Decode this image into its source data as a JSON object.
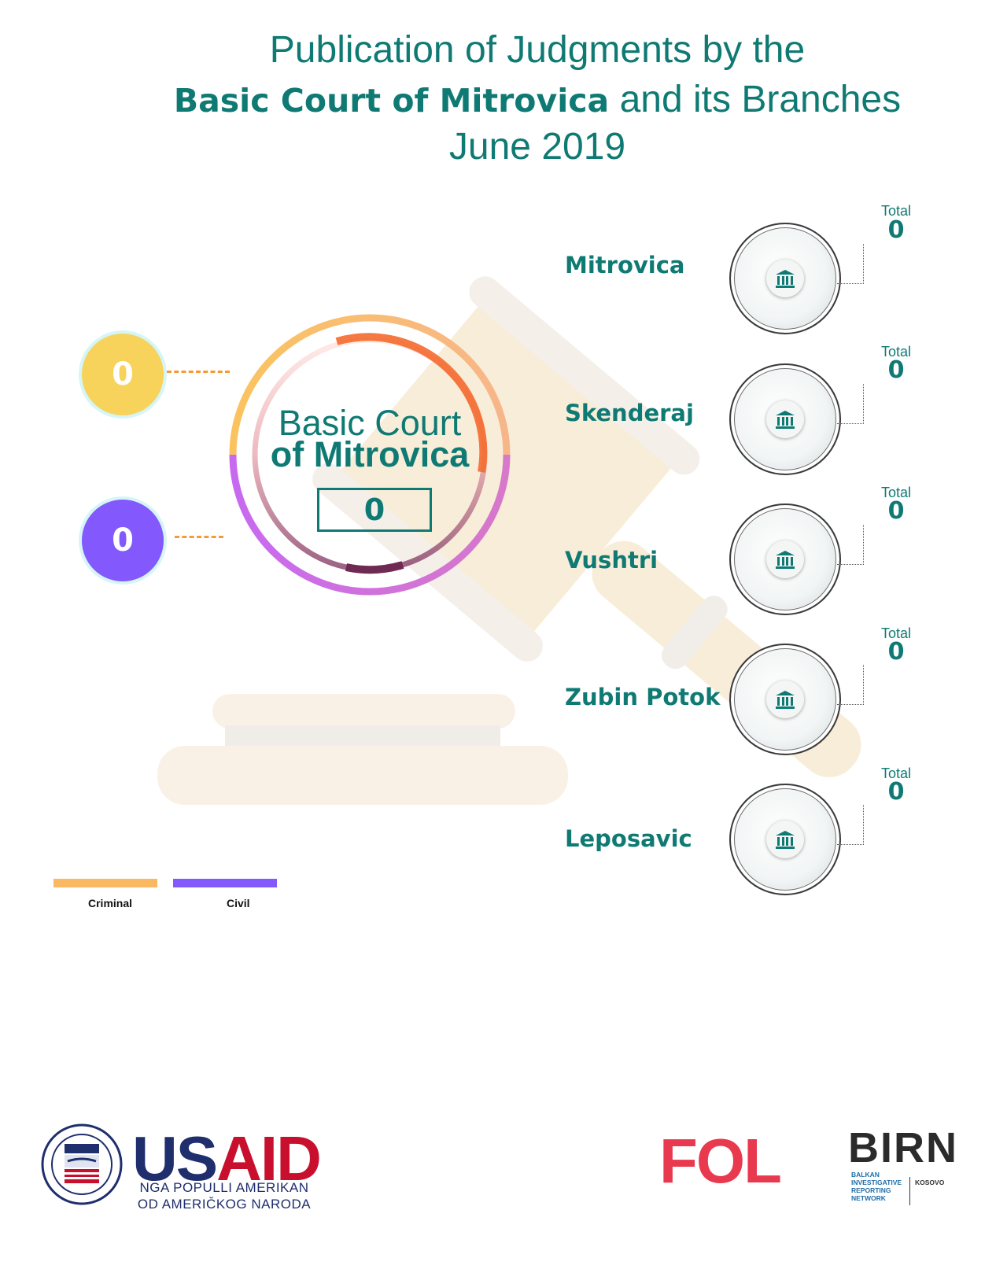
{
  "header": {
    "line1": "Publication of Judgments by the",
    "line2_bold": "Basic Court of Mitrovica",
    "line2_rest": "and its Branches",
    "line3": "June 2019"
  },
  "main_court": {
    "name_line1": "Basic Court",
    "name_line2": "of Mitrovica",
    "total": "0"
  },
  "chart_data": {
    "type": "pie",
    "categories": [
      "Criminal",
      "Civil"
    ],
    "values": [
      0,
      0
    ],
    "total": 0,
    "branches": [
      {
        "name": "Mitrovica",
        "total_label": "Total",
        "total": 0
      },
      {
        "name": "Skenderaj",
        "total_label": "Total",
        "total": 0
      },
      {
        "name": "Vushtri",
        "total_label": "Total",
        "total": 0
      },
      {
        "name": "Zubin Potok",
        "total_label": "Total",
        "total": 0
      },
      {
        "name": "Leposavic",
        "total_label": "Total",
        "total": 0
      }
    ]
  },
  "side_values": {
    "criminal": "0",
    "civil": "0"
  },
  "legend": [
    {
      "label": "Criminal",
      "color": "#fbb862"
    },
    {
      "label": "Civil",
      "color": "#8358fc"
    }
  ],
  "colors": {
    "accent": "#0f7a73",
    "criminal": "#f7d35b",
    "civil": "#8358fc",
    "dash": "#f39a3a"
  },
  "logos": {
    "usaid_word_us": "US",
    "usaid_word_aid": "AID",
    "usaid_sub1": "NGA POPULLI AMERIKAN",
    "usaid_sub2": "OD AMERIČKOG NARODA",
    "fol": "FOL",
    "birn": "BIRN",
    "birn_sub": "BALKAN INVESTIGATIVE REPORTING NETWORK",
    "birn_kosovo": "KOSOVO"
  }
}
